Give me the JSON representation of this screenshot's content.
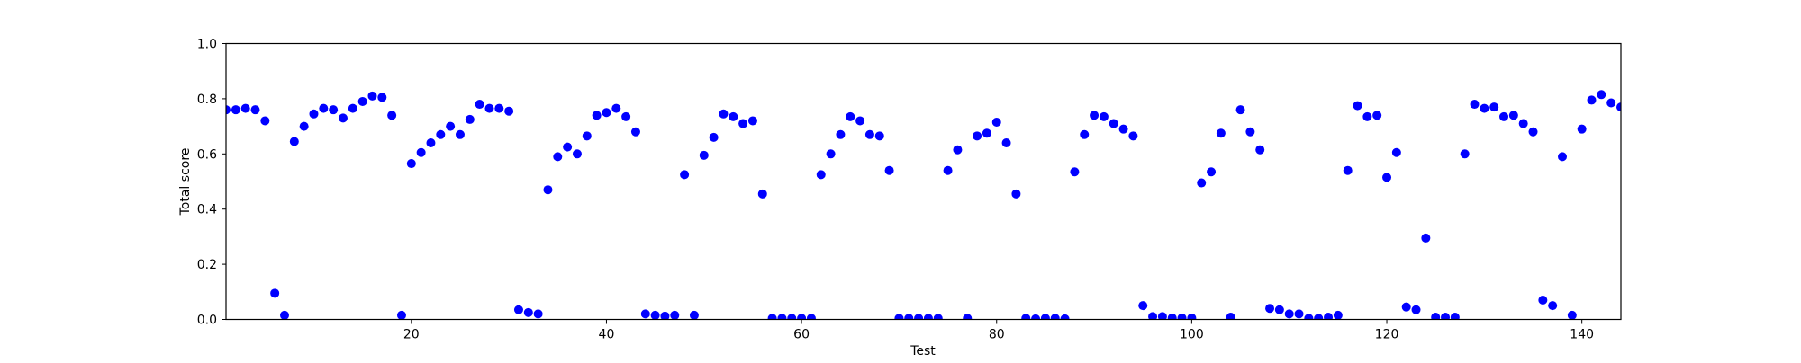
{
  "chart_data": {
    "type": "scatter",
    "title": "",
    "xlabel": "Test",
    "ylabel": "Total score",
    "xlim": [
      1,
      144
    ],
    "ylim": [
      0,
      1
    ],
    "x_ticks": [
      20,
      40,
      60,
      80,
      100,
      120,
      140
    ],
    "x_tick_labels": [
      "20",
      "40",
      "60",
      "80",
      "100",
      "120",
      "140"
    ],
    "y_ticks": [
      0,
      0.2,
      0.4,
      0.6,
      0.8,
      1.0
    ],
    "y_tick_labels": [
      "0.0",
      "0.2",
      "0.4",
      "0.6",
      "0.8",
      "1.0"
    ],
    "grid": false,
    "marker_color": "#0000ff",
    "x": [
      1,
      2,
      3,
      4,
      5,
      6,
      7,
      8,
      9,
      10,
      11,
      12,
      13,
      14,
      15,
      16,
      17,
      18,
      19,
      20,
      21,
      22,
      23,
      24,
      25,
      26,
      27,
      28,
      29,
      30,
      31,
      32,
      33,
      34,
      35,
      36,
      37,
      38,
      39,
      40,
      41,
      42,
      43,
      44,
      45,
      46,
      47,
      48,
      49,
      50,
      51,
      52,
      53,
      54,
      55,
      56,
      57,
      58,
      59,
      60,
      61,
      62,
      63,
      64,
      65,
      66,
      67,
      68,
      69,
      70,
      71,
      72,
      73,
      74,
      75,
      76,
      77,
      78,
      79,
      80,
      81,
      82,
      83,
      84,
      85,
      86,
      87,
      88,
      89,
      90,
      91,
      92,
      93,
      94,
      95,
      96,
      97,
      98,
      99,
      100,
      101,
      102,
      103,
      104,
      105,
      106,
      107,
      108,
      109,
      110,
      111,
      112,
      113,
      114,
      115,
      116,
      117,
      118,
      119,
      120,
      121,
      122,
      123,
      124,
      125,
      126,
      127,
      128,
      129,
      130,
      131,
      132,
      133,
      134,
      135,
      136,
      137,
      138,
      139,
      140,
      141,
      142,
      143,
      144
    ],
    "y": [
      0.76,
      0.76,
      0.765,
      0.76,
      0.72,
      0.095,
      0.015,
      0.645,
      0.7,
      0.745,
      0.765,
      0.76,
      0.73,
      0.765,
      0.79,
      0.81,
      0.805,
      0.74,
      0.015,
      0.565,
      0.605,
      0.64,
      0.67,
      0.7,
      0.67,
      0.725,
      0.78,
      0.765,
      0.765,
      0.755,
      0.035,
      0.025,
      0.02,
      0.47,
      0.59,
      0.625,
      0.6,
      0.665,
      0.74,
      0.75,
      0.765,
      0.735,
      0.68,
      0.02,
      0.015,
      0.012,
      0.015,
      0.525,
      0.015,
      0.595,
      0.66,
      0.745,
      0.735,
      0.71,
      0.72,
      0.455,
      0.004,
      0.004,
      0.004,
      0.004,
      0.004,
      0.525,
      0.6,
      0.67,
      0.735,
      0.72,
      0.67,
      0.665,
      0.54,
      0.004,
      0.004,
      0.004,
      0.004,
      0.004,
      0.54,
      0.615,
      0.004,
      0.665,
      0.675,
      0.715,
      0.64,
      0.455,
      0.004,
      0.002,
      0.004,
      0.004,
      0.002,
      0.535,
      0.67,
      0.74,
      0.735,
      0.71,
      0.69,
      0.665,
      0.05,
      0.01,
      0.01,
      0.005,
      0.005,
      0.005,
      0.495,
      0.535,
      0.675,
      0.008,
      0.76,
      0.68,
      0.615,
      0.04,
      0.035,
      0.02,
      0.02,
      0.004,
      0.004,
      0.008,
      0.015,
      0.54,
      0.775,
      0.735,
      0.74,
      0.515,
      0.605,
      0.045,
      0.035,
      0.295,
      0.008,
      0.008,
      0.008,
      0.6,
      0.78,
      0.765,
      0.77,
      0.735,
      0.74,
      0.71,
      0.68,
      0.07,
      0.05,
      0.59,
      0.015,
      0.69,
      0.795,
      0.815,
      0.785,
      0.77
    ]
  }
}
